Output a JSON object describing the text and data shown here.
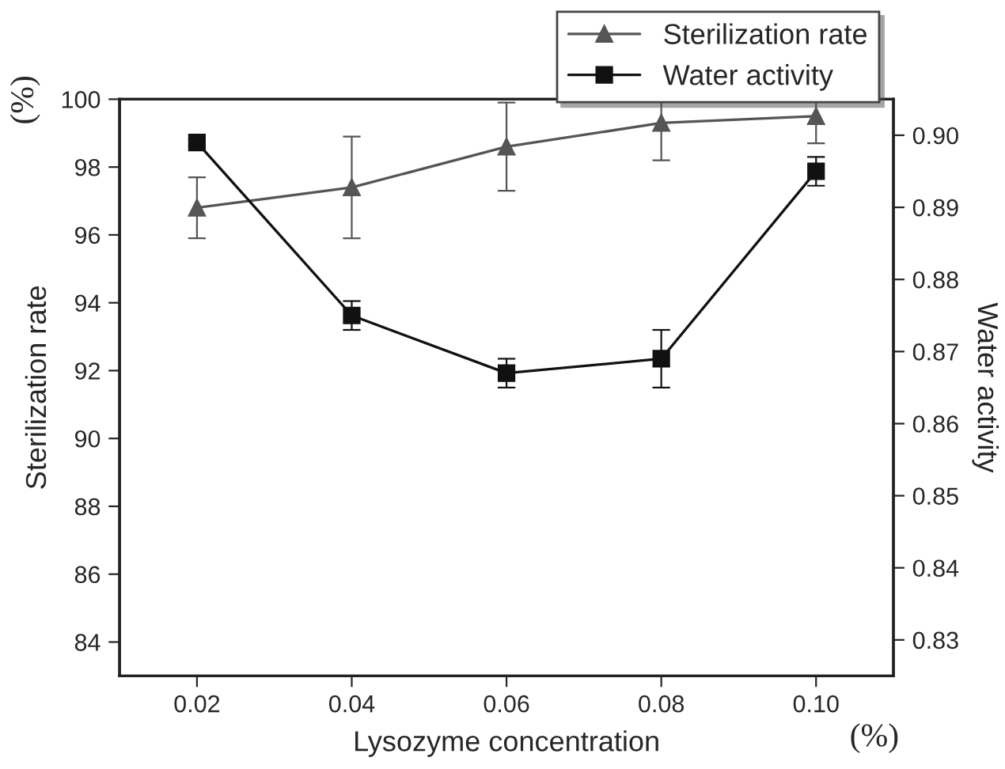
{
  "chart_data": {
    "type": "line",
    "xlabel": "Lysozyme concentration",
    "ylabel": "Sterilization rate",
    "y2label": "Water activity",
    "x": [
      0.02,
      0.04,
      0.06,
      0.08,
      0.1
    ],
    "series": [
      {
        "name": "Sterilization rate",
        "color": "#555555",
        "marker": "triangle",
        "values": [
          96.8,
          97.4,
          98.6,
          99.3,
          99.5
        ],
        "errors": [
          0.9,
          1.5,
          1.3,
          1.1,
          0.8
        ]
      },
      {
        "name": "Water activity",
        "color": "#111111",
        "marker": "square",
        "axis": "y2",
        "values": [
          0.899,
          0.875,
          0.867,
          0.869,
          0.895
        ],
        "errors": [
          0.0005,
          0.002,
          0.002,
          0.004,
          0.002
        ]
      }
    ],
    "xlim": [
      0.01,
      0.11
    ],
    "xticks": [
      {
        "value": 0.02,
        "label": "0.02"
      },
      {
        "value": 0.04,
        "label": "0.04"
      },
      {
        "value": 0.06,
        "label": "0.06"
      },
      {
        "value": 0.08,
        "label": "0.08"
      },
      {
        "value": 0.1,
        "label": "0.10"
      }
    ],
    "ylim": [
      83,
      100
    ],
    "yticks": [
      84,
      86,
      88,
      90,
      92,
      94,
      96,
      98,
      100
    ],
    "y2lim": [
      0.825,
      0.905
    ],
    "y2ticks": [
      {
        "value": 0.83,
        "label": "0.83"
      },
      {
        "value": 0.84,
        "label": "0.84"
      },
      {
        "value": 0.85,
        "label": "0.85"
      },
      {
        "value": 0.86,
        "label": "0.86"
      },
      {
        "value": 0.87,
        "label": "0.87"
      },
      {
        "value": 0.88,
        "label": "0.88"
      },
      {
        "value": 0.89,
        "label": "0.89"
      },
      {
        "value": 0.9,
        "label": "0.90"
      }
    ],
    "annotations": [
      "(%)",
      "(%)"
    ],
    "grid": false,
    "legend": "top right"
  }
}
